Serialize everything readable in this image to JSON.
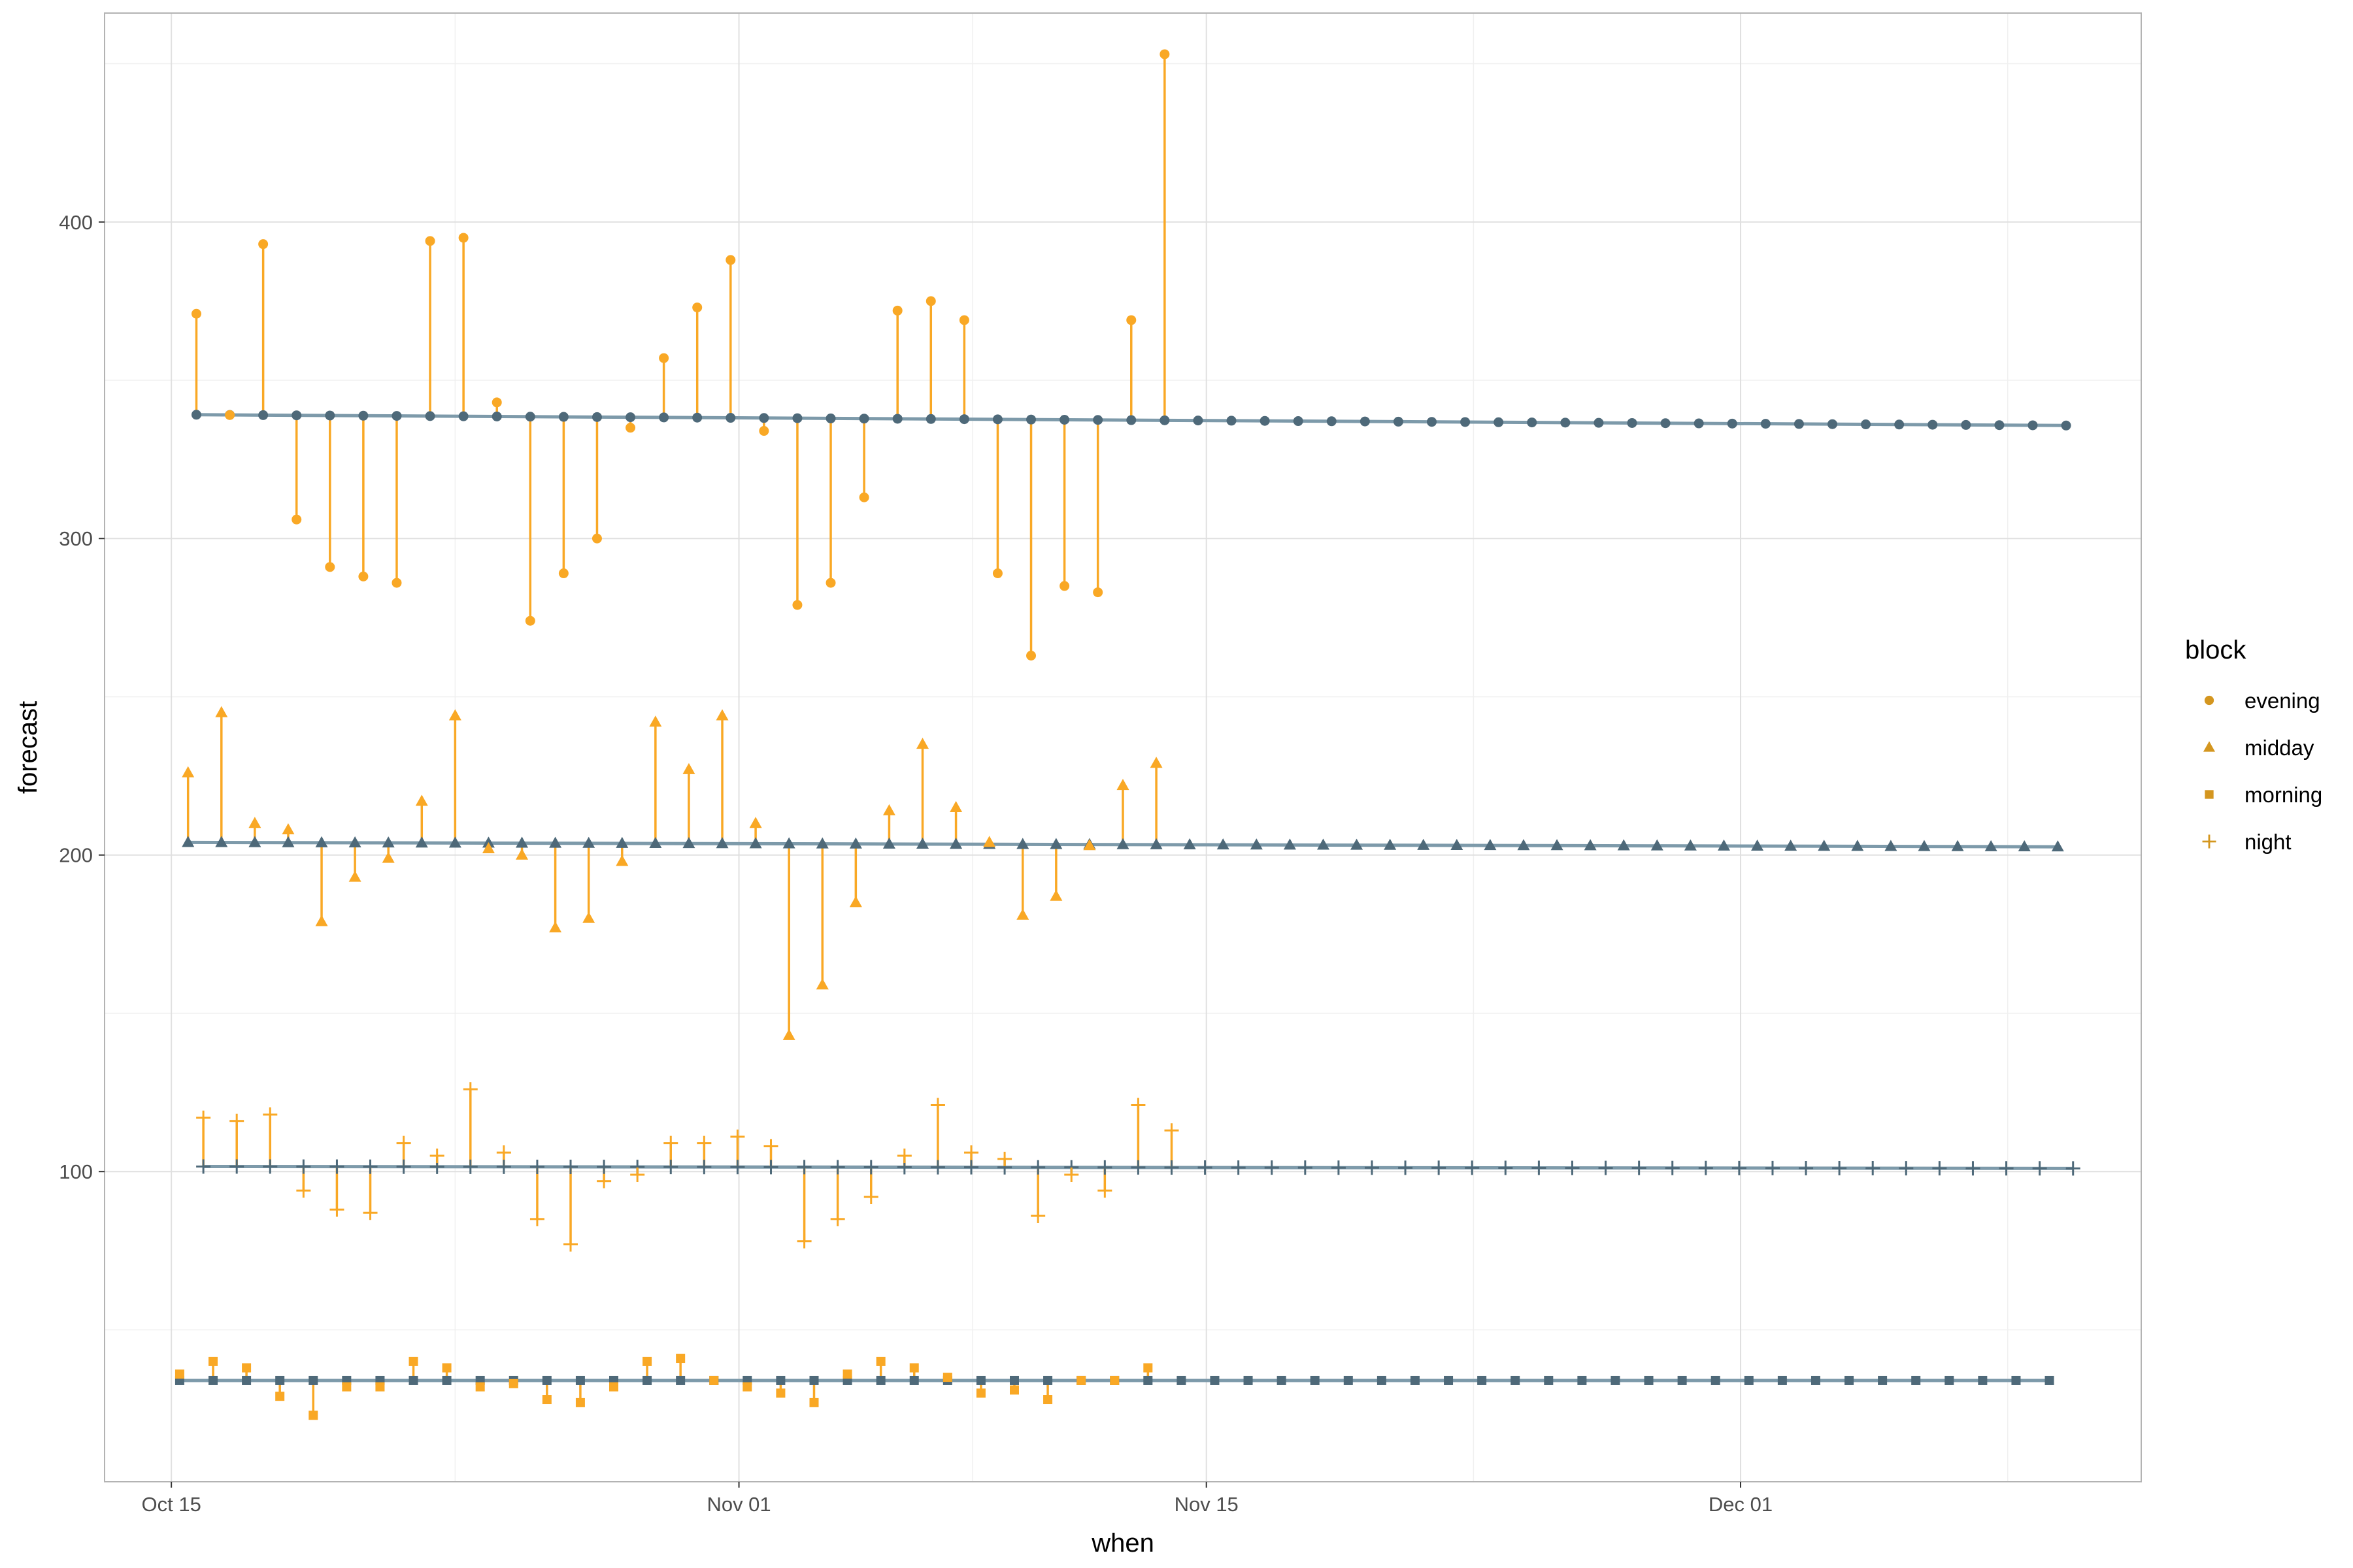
{
  "colors": {
    "observed": "#F9A825",
    "legend_key": "#D4961F",
    "forecast": "#4E6979",
    "forecast_line": "#7D9AAA",
    "panel_border": "#B3B3B3",
    "grid_major": "#E0E0E0",
    "grid_minor": "#F0F0F0"
  },
  "chart_data": {
    "type": "scatter",
    "xlabel": "when",
    "ylabel": "forecast",
    "xlim": [
      "2023-10-13",
      "2023-12-13"
    ],
    "ylim": [
      2,
      466
    ],
    "x_ticks": [
      {
        "date": "2023-10-15",
        "label": "Oct 15"
      },
      {
        "date": "2023-11-01",
        "label": "Nov 01"
      },
      {
        "date": "2023-11-15",
        "label": "Nov 15"
      },
      {
        "date": "2023-12-01",
        "label": "Dec 01"
      }
    ],
    "y_ticks": [
      100,
      200,
      300,
      400
    ],
    "grid": true,
    "legend": {
      "title": "block",
      "position": "right",
      "entries": [
        {
          "label": "evening",
          "shape": "circle"
        },
        {
          "label": "midday",
          "shape": "triangle"
        },
        {
          "label": "morning",
          "shape": "square"
        },
        {
          "label": "night",
          "shape": "plus"
        }
      ]
    },
    "series": [
      {
        "name": "evening",
        "shape": "circle",
        "start_date": "2023-10-15T18:00",
        "forecast_start": 339.1,
        "forecast_end": 335.7,
        "forecast_count": 57,
        "observed": [
          371,
          339,
          393,
          306,
          291,
          288,
          286,
          394,
          395,
          343,
          274,
          289,
          300,
          335,
          357,
          373,
          388,
          334,
          279,
          286,
          313,
          372,
          375,
          369,
          289,
          263,
          285,
          283,
          369,
          453
        ]
      },
      {
        "name": "midday",
        "shape": "triangle",
        "start_date": "2023-10-15T12:00",
        "forecast_start": 204.0,
        "forecast_end": 202.6,
        "forecast_count": 57,
        "observed": [
          226,
          245,
          210,
          208,
          179,
          193,
          199,
          217,
          244,
          202,
          200,
          177,
          180,
          198,
          242,
          227,
          244,
          210,
          143,
          159,
          185,
          214,
          235,
          215,
          204,
          181,
          187,
          203,
          222,
          229
        ]
      },
      {
        "name": "morning",
        "shape": "square",
        "start_date": "2023-10-15T06:00",
        "forecast_start": 34.0,
        "forecast_end": 34.0,
        "forecast_count": 57,
        "observed": [
          36,
          40,
          38,
          29,
          23,
          32,
          32,
          40,
          38,
          32,
          33,
          28,
          27,
          32,
          40,
          41,
          34,
          32,
          30,
          27,
          36,
          40,
          38,
          35,
          30,
          31,
          28,
          34,
          34,
          38
        ]
      },
      {
        "name": "night",
        "shape": "plus",
        "start_date": "2023-10-15T23:00",
        "forecast_start": 101.6,
        "forecast_end": 101.0,
        "forecast_count": 57,
        "observed": [
          117,
          116,
          118,
          94,
          88,
          87,
          109,
          105,
          126,
          106,
          85,
          77,
          97,
          99,
          109,
          109,
          111,
          108,
          78,
          85,
          92,
          105,
          121,
          106,
          104,
          86,
          99,
          94,
          121,
          113
        ]
      }
    ]
  }
}
